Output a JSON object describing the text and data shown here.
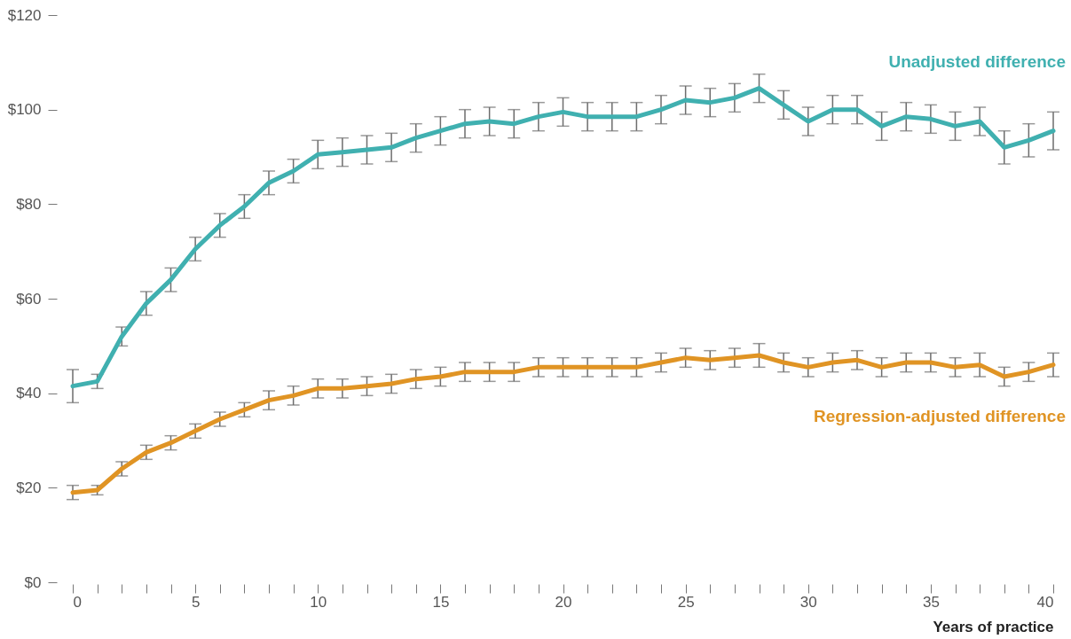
{
  "chart_data": {
    "type": "line",
    "xlabel": "Years of practice",
    "x": [
      0,
      1,
      2,
      3,
      4,
      5,
      6,
      7,
      8,
      9,
      10,
      11,
      12,
      13,
      14,
      15,
      16,
      17,
      18,
      19,
      20,
      21,
      22,
      23,
      24,
      25,
      26,
      27,
      28,
      29,
      30,
      31,
      32,
      33,
      34,
      35,
      36,
      37,
      38,
      39,
      40
    ],
    "xlim": [
      0,
      40
    ],
    "xticks": [
      0,
      {
        "value": 1,
        "label": null
      },
      {
        "value": 2,
        "label": null
      },
      {
        "value": 3,
        "label": null
      },
      {
        "value": 4,
        "label": null
      },
      5,
      {
        "value": 6,
        "label": null
      },
      {
        "value": 7,
        "label": null
      },
      {
        "value": 8,
        "label": null
      },
      {
        "value": 9,
        "label": null
      },
      10,
      {
        "value": 11,
        "label": null
      },
      {
        "value": 12,
        "label": null
      },
      {
        "value": 13,
        "label": null
      },
      {
        "value": 14,
        "label": null
      },
      15,
      {
        "value": 16,
        "label": null
      },
      {
        "value": 17,
        "label": null
      },
      {
        "value": 18,
        "label": null
      },
      {
        "value": 19,
        "label": null
      },
      20,
      {
        "value": 21,
        "label": null
      },
      {
        "value": 22,
        "label": null
      },
      {
        "value": 23,
        "label": null
      },
      {
        "value": 24,
        "label": null
      },
      25,
      {
        "value": 26,
        "label": null
      },
      {
        "value": 27,
        "label": null
      },
      {
        "value": 28,
        "label": null
      },
      {
        "value": 29,
        "label": null
      },
      30,
      {
        "value": 31,
        "label": null
      },
      {
        "value": 32,
        "label": null
      },
      {
        "value": 33,
        "label": null
      },
      {
        "value": 34,
        "label": null
      },
      35,
      {
        "value": 36,
        "label": null
      },
      {
        "value": 37,
        "label": null
      },
      {
        "value": 38,
        "label": null
      },
      {
        "value": 39,
        "label": null
      },
      40
    ],
    "ylim": [
      0,
      120
    ],
    "yticks": [
      {
        "value": 0,
        "label": "$0"
      },
      {
        "value": 20,
        "label": "$20"
      },
      {
        "value": 40,
        "label": "$40"
      },
      {
        "value": 60,
        "label": "$60"
      },
      {
        "value": 80,
        "label": "$80"
      },
      {
        "value": 100,
        "label": "$100"
      },
      {
        "value": 120,
        "label": "$120"
      }
    ],
    "series": [
      {
        "name": "Unadjusted difference",
        "color": "#40b0b0",
        "values": [
          41.5,
          42.5,
          52,
          59,
          64,
          70.5,
          75.5,
          79.5,
          84.5,
          87,
          90.5,
          91,
          91.5,
          92,
          94,
          95.5,
          97,
          97.5,
          97,
          98.5,
          99.5,
          98.5,
          98.5,
          98.5,
          100,
          102,
          101.5,
          102.5,
          104.5,
          101,
          97.5,
          100,
          100,
          96.5,
          98.5,
          98,
          96.5,
          97.5,
          92,
          93.5,
          95.5
        ],
        "errors": [
          3.5,
          1.5,
          2,
          2.5,
          2.5,
          2.5,
          2.5,
          2.5,
          2.5,
          2.5,
          3,
          3,
          3,
          3,
          3,
          3,
          3,
          3,
          3,
          3,
          3,
          3,
          3,
          3,
          3,
          3,
          3,
          3,
          3,
          3,
          3,
          3,
          3,
          3,
          3,
          3,
          3,
          3,
          3.5,
          3.5,
          4
        ]
      },
      {
        "name": "Regression-adjusted difference",
        "color": "#e09424",
        "values": [
          19,
          19.5,
          24,
          27.5,
          29.5,
          32,
          34.5,
          36.5,
          38.5,
          39.5,
          41,
          41,
          41.5,
          42,
          43,
          43.5,
          44.5,
          44.5,
          44.5,
          45.5,
          45.5,
          45.5,
          45.5,
          45.5,
          46.5,
          47.5,
          47,
          47.5,
          48,
          46.5,
          45.5,
          46.5,
          47,
          45.5,
          46.5,
          46.5,
          45.5,
          46,
          43.5,
          44.5,
          46
        ],
        "errors": [
          1.5,
          1,
          1.5,
          1.5,
          1.5,
          1.5,
          1.5,
          1.5,
          2,
          2,
          2,
          2,
          2,
          2,
          2,
          2,
          2,
          2,
          2,
          2,
          2,
          2,
          2,
          2,
          2,
          2,
          2,
          2,
          2.5,
          2,
          2,
          2,
          2,
          2,
          2,
          2,
          2,
          2.5,
          2,
          2,
          2.5
        ]
      }
    ]
  }
}
